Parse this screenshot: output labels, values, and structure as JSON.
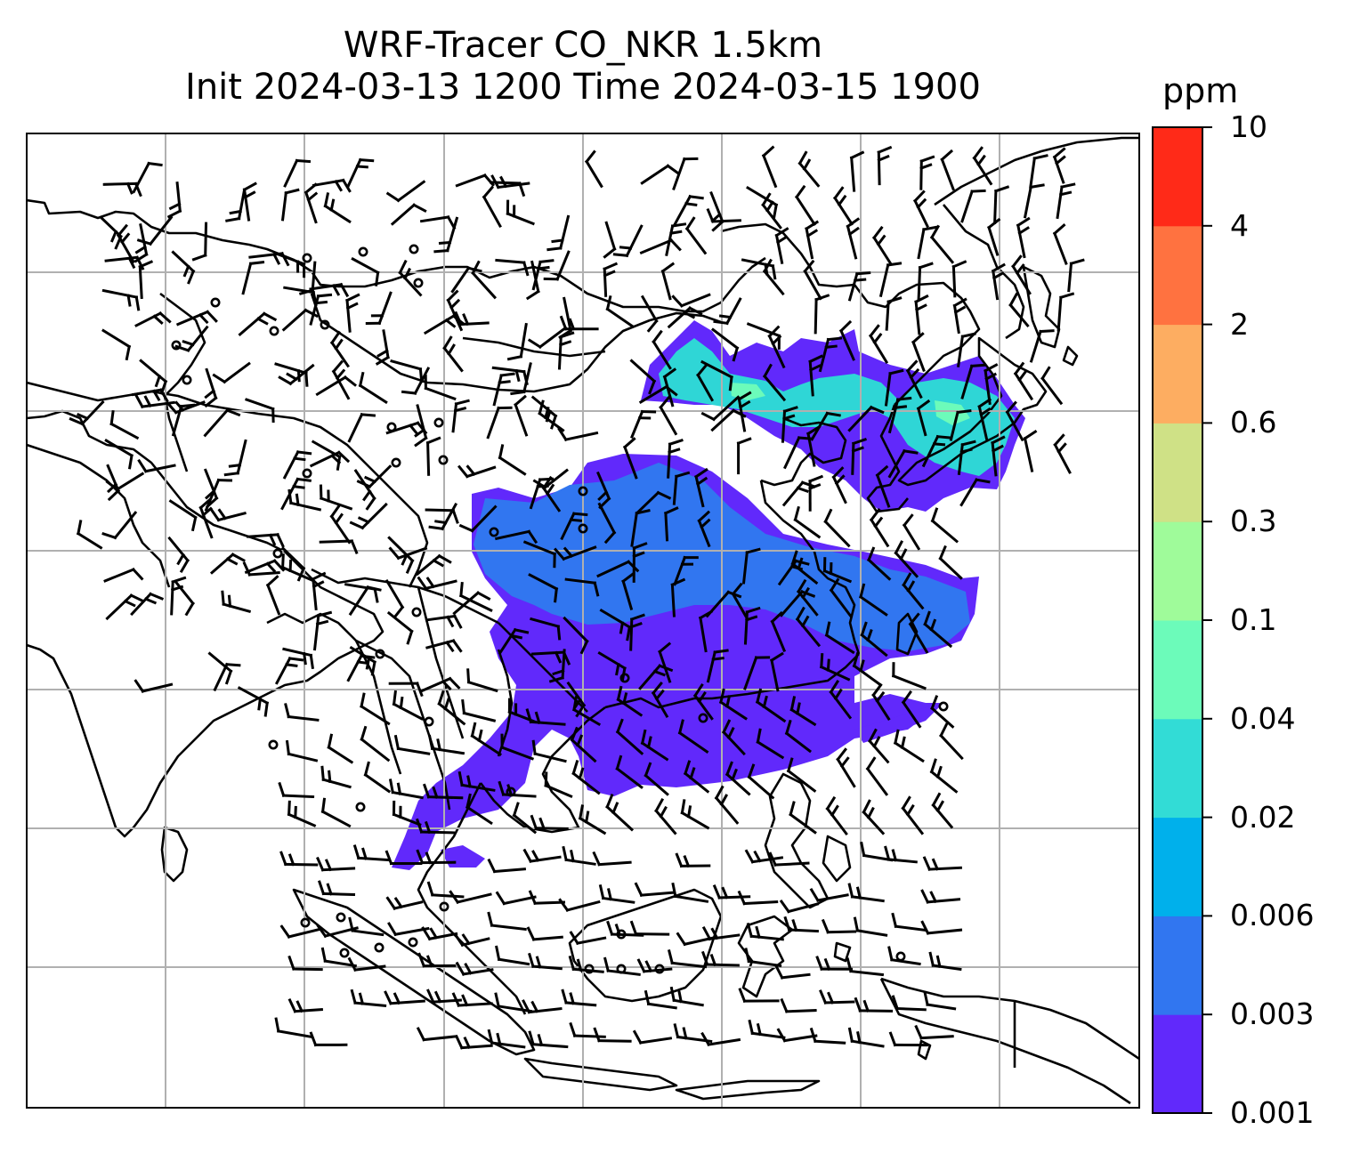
{
  "title": {
    "line1": "WRF-Tracer CO_NKR 1.5km",
    "line2": "Init 2024-03-13 1200 Time 2024-03-15 1900"
  },
  "colorbar": {
    "unit": "ppm",
    "levels": [
      "0.001",
      "0.003",
      "0.006",
      "0.02",
      "0.04",
      "0.1",
      "0.3",
      "0.6",
      "2",
      "4",
      "10"
    ],
    "colors": [
      "#6129fb",
      "#3176f0",
      "#00b0eb",
      "#32dcd6",
      "#6cfbba",
      "#9ffb9a",
      "#cfe186",
      "#fdad61",
      "#ff7240",
      "#ff2a18"
    ]
  },
  "map": {
    "gridlines": true,
    "grid_color": "#b0b0b0",
    "coastline_color": "#000000",
    "tracer_colors": {
      "low": "#6129fb",
      "medium": "#3176f0",
      "high": "#2fd6d6",
      "peak": "#6cfbba"
    },
    "barb_color": "#000000"
  }
}
